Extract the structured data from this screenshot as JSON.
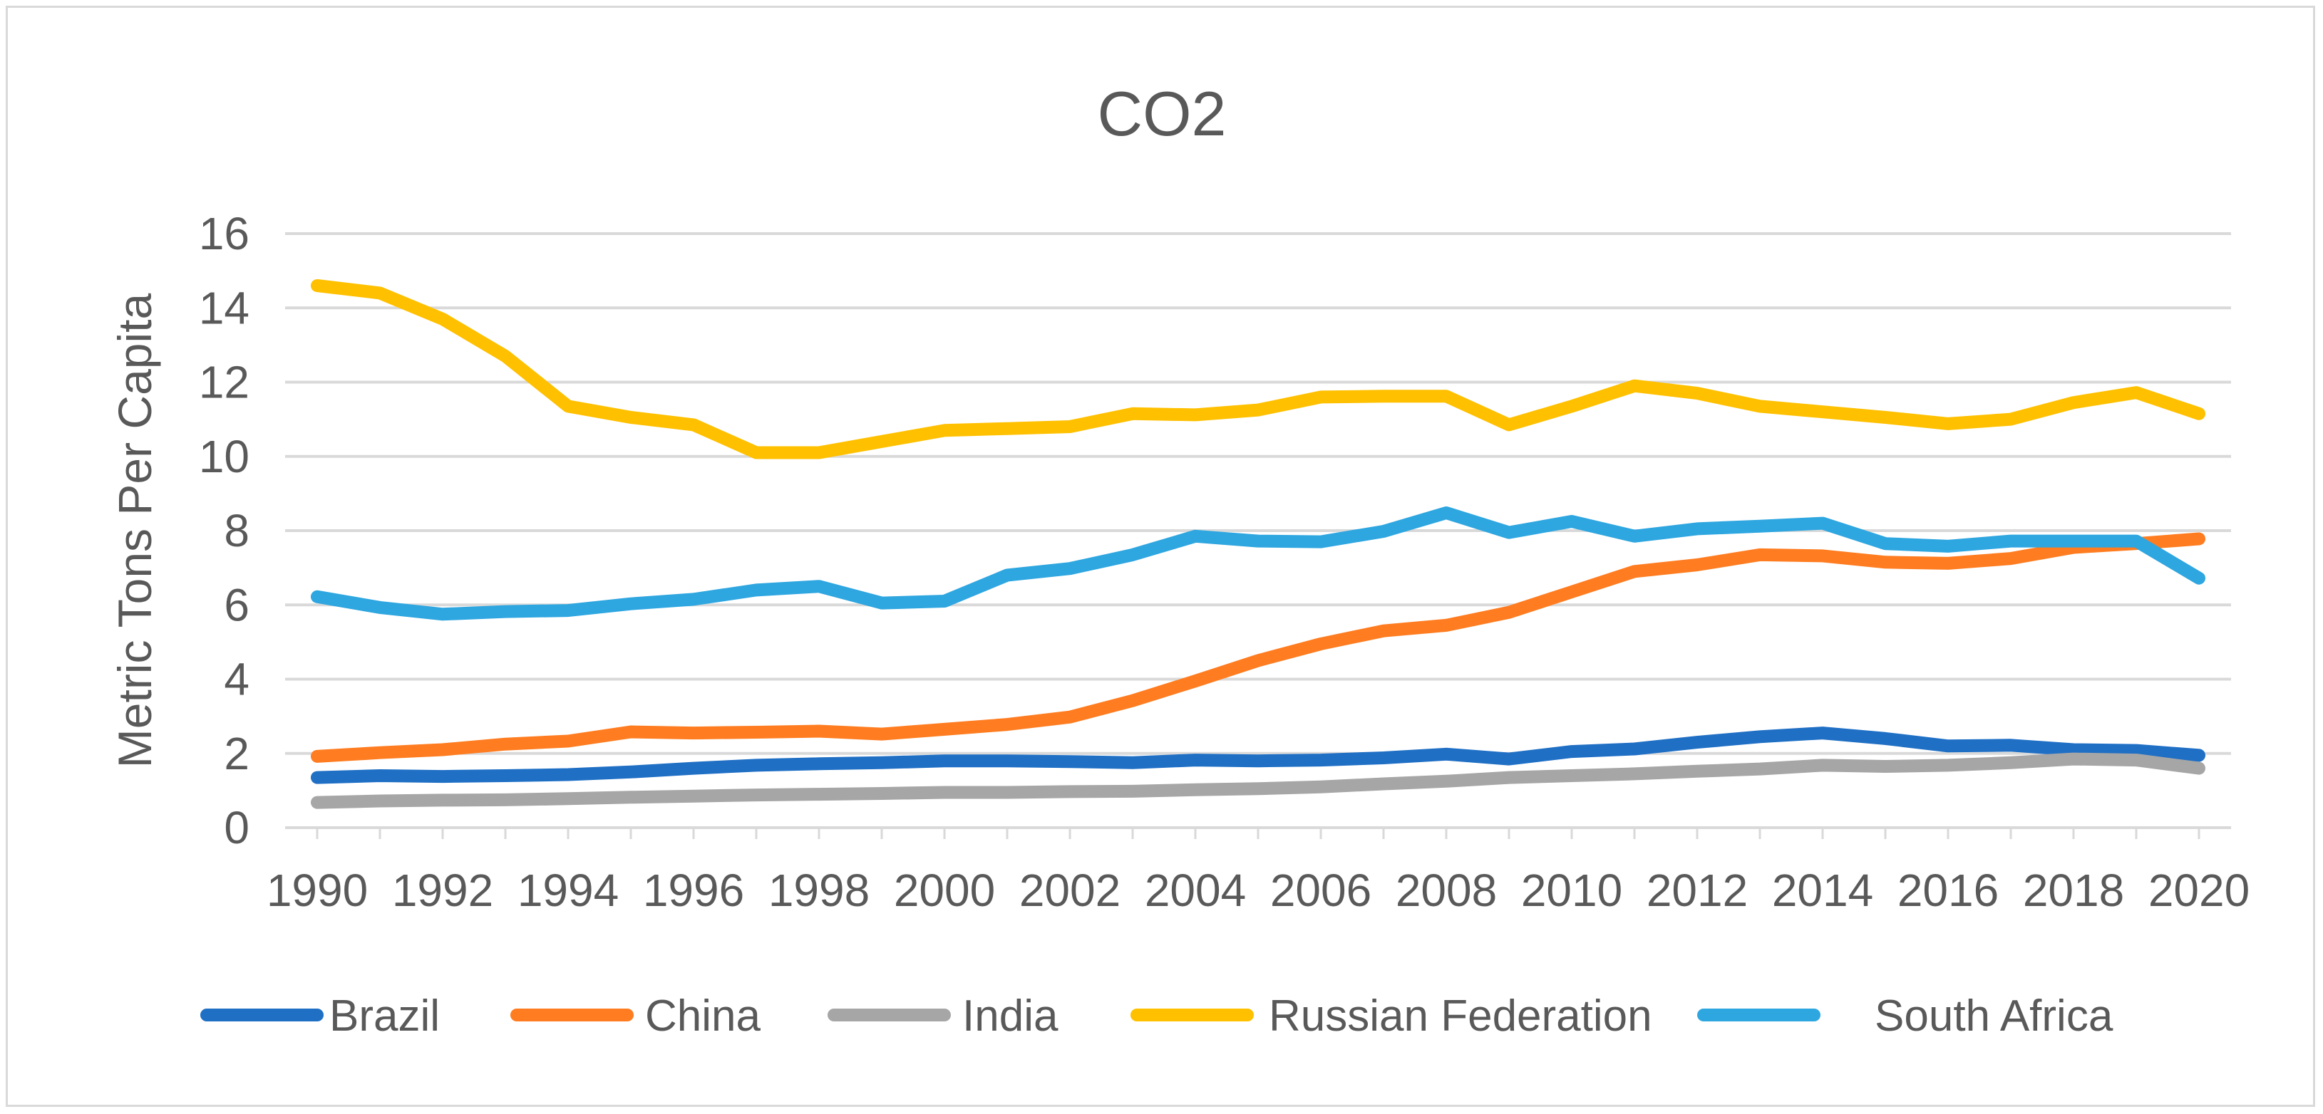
{
  "chart_data": {
    "type": "line",
    "title": "CO2",
    "xlabel": "",
    "ylabel": "Metric Tons Per Capita",
    "ylim": [
      0,
      16
    ],
    "yticks": [
      0,
      2,
      4,
      6,
      8,
      10,
      12,
      14,
      16
    ],
    "x": [
      1990,
      1991,
      1992,
      1993,
      1994,
      1995,
      1996,
      1997,
      1998,
      1999,
      2000,
      2001,
      2002,
      2003,
      2004,
      2005,
      2006,
      2007,
      2008,
      2009,
      2010,
      2011,
      2012,
      2013,
      2014,
      2015,
      2016,
      2017,
      2018,
      2019,
      2020
    ],
    "x_tick_labels": [
      "1990",
      "1992",
      "1994",
      "1996",
      "1998",
      "2000",
      "2002",
      "2004",
      "2006",
      "2008",
      "2010",
      "2012",
      "2014",
      "2016",
      "2018",
      "2020"
    ],
    "grid": true,
    "legend_position": "bottom",
    "series": [
      {
        "name": "Brazil",
        "color": "#1f6fc5",
        "values": [
          1.35,
          1.4,
          1.38,
          1.4,
          1.43,
          1.5,
          1.6,
          1.68,
          1.72,
          1.75,
          1.8,
          1.8,
          1.78,
          1.75,
          1.82,
          1.8,
          1.82,
          1.88,
          1.98,
          1.85,
          2.05,
          2.12,
          2.3,
          2.45,
          2.55,
          2.4,
          2.2,
          2.22,
          2.1,
          2.08,
          1.95
        ]
      },
      {
        "name": "China",
        "color": "#ff7c20",
        "values": [
          1.92,
          2.02,
          2.1,
          2.25,
          2.33,
          2.58,
          2.55,
          2.57,
          2.6,
          2.52,
          2.65,
          2.78,
          2.98,
          3.42,
          3.95,
          4.5,
          4.95,
          5.3,
          5.45,
          5.8,
          6.35,
          6.9,
          7.08,
          7.35,
          7.32,
          7.15,
          7.12,
          7.25,
          7.55,
          7.65,
          7.78
        ]
      },
      {
        "name": "India",
        "color": "#a6a6a6",
        "values": [
          0.68,
          0.72,
          0.74,
          0.75,
          0.78,
          0.82,
          0.85,
          0.88,
          0.9,
          0.92,
          0.95,
          0.95,
          0.97,
          0.98,
          1.02,
          1.05,
          1.1,
          1.18,
          1.25,
          1.35,
          1.4,
          1.45,
          1.52,
          1.58,
          1.68,
          1.65,
          1.68,
          1.75,
          1.85,
          1.82,
          1.6
        ]
      },
      {
        "name": "Russian Federation",
        "color": "#ffc000",
        "values": [
          14.6,
          14.4,
          13.7,
          12.7,
          11.35,
          11.05,
          10.85,
          10.1,
          10.1,
          10.4,
          10.7,
          10.75,
          10.8,
          11.15,
          11.12,
          11.25,
          11.6,
          11.62,
          11.62,
          10.85,
          11.35,
          11.9,
          11.7,
          11.35,
          11.2,
          11.05,
          10.88,
          11.0,
          11.45,
          11.72,
          11.15
        ]
      },
      {
        "name": "South Africa",
        "color": "#2ea6e0",
        "values": [
          6.22,
          5.93,
          5.75,
          5.82,
          5.85,
          6.03,
          6.15,
          6.4,
          6.5,
          6.05,
          6.1,
          6.8,
          6.98,
          7.35,
          7.85,
          7.72,
          7.7,
          7.98,
          8.48,
          7.95,
          8.25,
          7.85,
          8.05,
          8.12,
          8.2,
          7.65,
          7.58,
          7.72,
          7.72,
          7.72,
          6.72
        ]
      }
    ]
  }
}
